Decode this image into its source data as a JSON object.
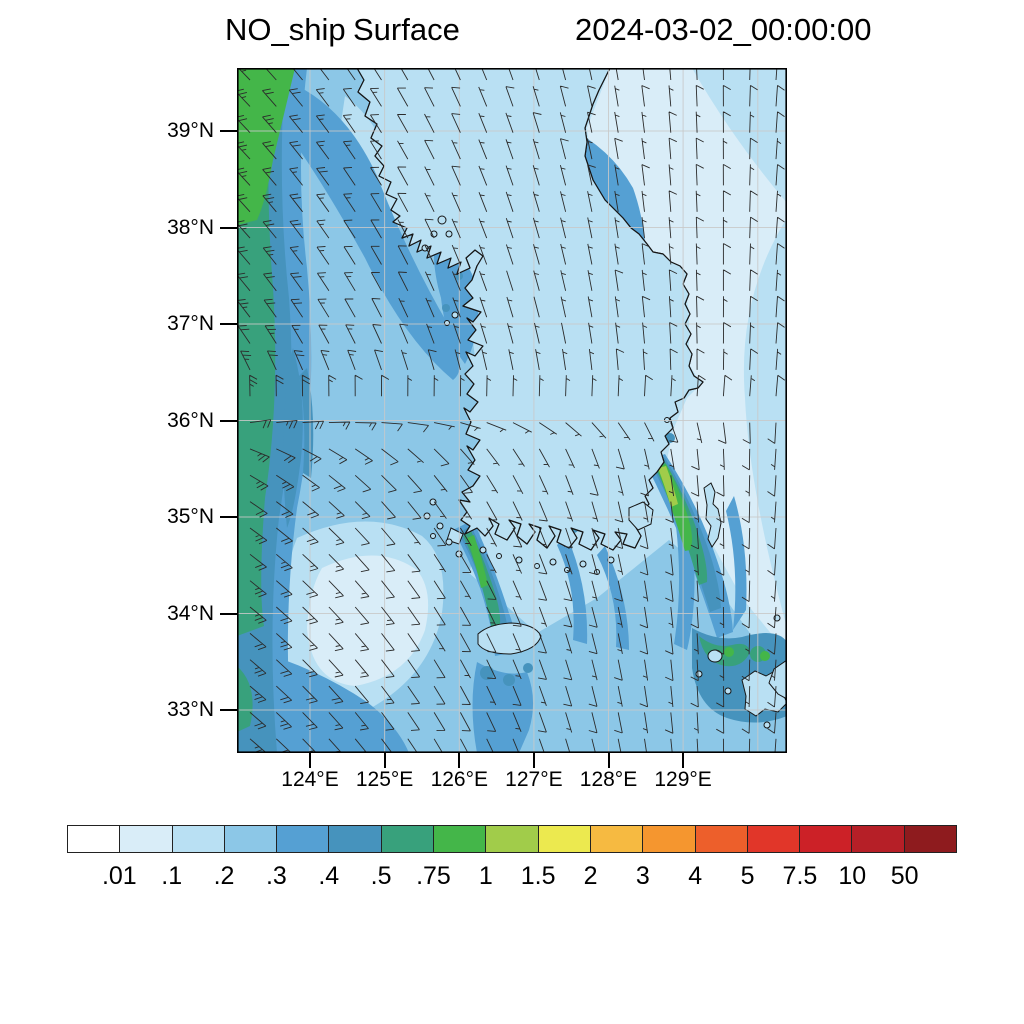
{
  "title": {
    "variable": "NO_ship",
    "level": "Surface",
    "datetime": "2024-03-02_00:00:00"
  },
  "axes": {
    "lat_ticks": [
      "39°N",
      "38°N",
      "37°N",
      "36°N",
      "35°N",
      "34°N",
      "33°N"
    ],
    "lon_ticks": [
      "124°E",
      "125°E",
      "126°E",
      "127°E",
      "128°E",
      "129°E"
    ]
  },
  "colorbar": {
    "labels": [
      ".01",
      ".1",
      ".2",
      ".3",
      ".4",
      ".5",
      ".75",
      "1",
      "1.5",
      "2",
      "3",
      "4",
      "5",
      "7.5",
      "10",
      "50"
    ],
    "colors": [
      "#ffffff",
      "#d9edf8",
      "#b9e0f3",
      "#8cc7e7",
      "#55a0d3",
      "#4693bd",
      "#38a17c",
      "#44b649",
      "#a1cc4a",
      "#ece94f",
      "#f6ba41",
      "#f5962f",
      "#ed5f2b",
      "#e13629",
      "#cc2127",
      "#b61f27",
      "#8e1b1e"
    ]
  },
  "chart_data": {
    "type": "heatmap",
    "title": "NO_ship Surface 2024-03-02_00:00:00",
    "variable": "NO_ship",
    "level": "Surface",
    "valid_time": "2024-03-02_00:00:00",
    "region": "Korean Peninsula, Yellow Sea, East Sea and Korea Strait",
    "x": {
      "label": "longitude",
      "ticks": [
        "124°E",
        "125°E",
        "126°E",
        "127°E",
        "128°E",
        "129°E"
      ],
      "approx_range_deg": [
        123.0,
        130.4
      ]
    },
    "y": {
      "label": "latitude",
      "ticks": [
        "39°N",
        "38°N",
        "37°N",
        "36°N",
        "35°N",
        "34°N",
        "33°N"
      ],
      "approx_range_deg": [
        32.6,
        39.7
      ]
    },
    "color_scale": {
      "boundaries": [
        0.01,
        0.1,
        0.2,
        0.3,
        0.4,
        0.5,
        0.75,
        1,
        1.5,
        2,
        3,
        4,
        5,
        7.5,
        10,
        50
      ],
      "colors": [
        "#ffffff",
        "#d9edf8",
        "#b9e0f3",
        "#8cc7e7",
        "#55a0d3",
        "#4693bd",
        "#38a17c",
        "#44b649",
        "#a1cc4a",
        "#ece94f",
        "#f6ba41",
        "#f5962f",
        "#ed5f2b",
        "#e13629",
        "#cc2127",
        "#b61f27",
        "#8e1b1e"
      ]
    },
    "overlays": [
      "filled concentration contours",
      "wind barbs",
      "coastlines",
      "province borders",
      "lat-lon graticule"
    ],
    "observed_features": [
      "Elevated band (0.5-1) along the western map edge of the Yellow Sea, strongest (0.75-1, green) in the northwest corner",
      "Ship-track plume from Busan extending southeast toward Tsushima, core reaching 1-1.5 at the port",
      "Ship-lane plume (0.5-1) approaching Jeju Island from the north-northeast",
      "Green port/ship hotspots (0.75-1) near Gwangyang-Yeosu and along northwest Kyushu, Japan",
      "Medium values (0.2-0.4) over most of the Yellow Sea and Korea Strait",
      "Lowest values (<0.1, near-white) over inland eastern South Korea and inland North Korea",
      "Winds: northwesterly over the northern Yellow Sea, northerly over the East Sea, southerly over the Korea Strait, southeasterly in the southwest"
    ]
  }
}
